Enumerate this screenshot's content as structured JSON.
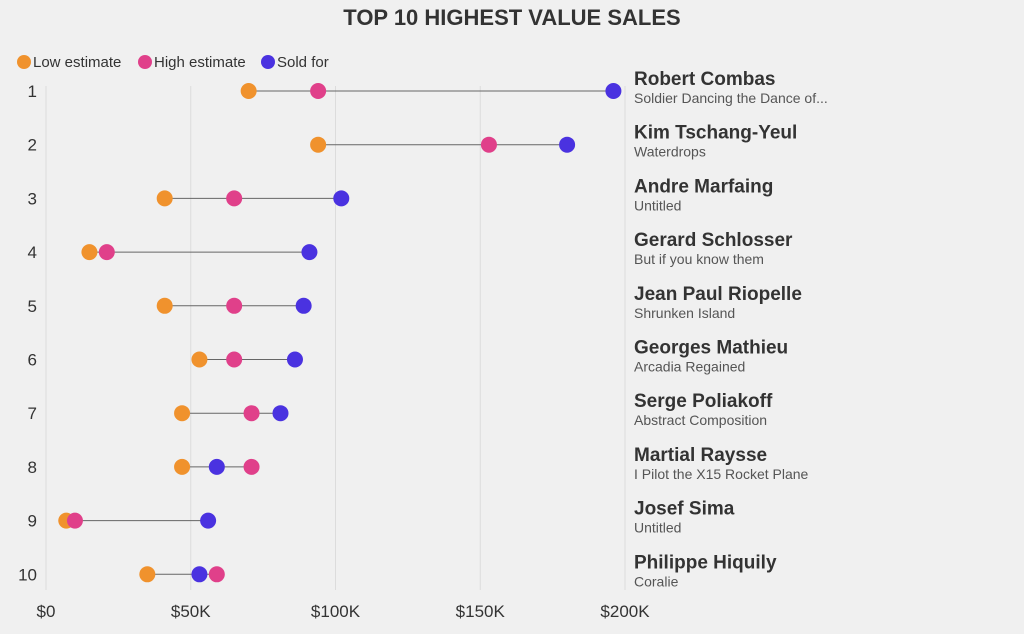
{
  "chart_data": {
    "type": "dumbbell",
    "title": "TOP 10 HIGHEST VALUE SALES",
    "xlabel": "",
    "ylabel": "",
    "xlim": [
      0,
      200000
    ],
    "x_ticks": [
      0,
      50000,
      100000,
      150000,
      200000
    ],
    "x_tick_labels": [
      "$0",
      "$50K",
      "$100K",
      "$150K",
      "$200K"
    ],
    "gridlines": "vertical",
    "legend_position": "top-left",
    "legend": [
      {
        "key": "low",
        "label": "Low estimate",
        "color": "#f0922d"
      },
      {
        "key": "high",
        "label": "High estimate",
        "color": "#e0408a"
      },
      {
        "key": "sold",
        "label": "Sold for",
        "color": "#4a32e0"
      }
    ],
    "rows": [
      {
        "rank": "1",
        "artist": "Robert Combas",
        "work": "Soldier Dancing the Dance of...",
        "low": 70000,
        "high": 94000,
        "sold": 196000
      },
      {
        "rank": "2",
        "artist": "Kim Tschang-Yeul",
        "work": "Waterdrops",
        "low": 94000,
        "high": 153000,
        "sold": 180000
      },
      {
        "rank": "3",
        "artist": "Andre Marfaing",
        "work": "Untitled",
        "low": 41000,
        "high": 65000,
        "sold": 102000
      },
      {
        "rank": "4",
        "artist": "Gerard Schlosser",
        "work": "But if you know them",
        "low": 15000,
        "high": 21000,
        "sold": 91000
      },
      {
        "rank": "5",
        "artist": "Jean Paul Riopelle",
        "work": "Shrunken Island",
        "low": 41000,
        "high": 65000,
        "sold": 89000
      },
      {
        "rank": "6",
        "artist": "Georges Mathieu",
        "work": "Arcadia Regained",
        "low": 53000,
        "high": 65000,
        "sold": 86000
      },
      {
        "rank": "7",
        "artist": "Serge Poliakoff",
        "work": "Abstract Composition",
        "low": 47000,
        "high": 71000,
        "sold": 81000
      },
      {
        "rank": "8",
        "artist": "Martial Raysse",
        "work": "I Pilot the X15 Rocket Plane",
        "low": 47000,
        "high": 71000,
        "sold": 59000
      },
      {
        "rank": "9",
        "artist": "Josef Sima",
        "work": "Untitled",
        "low": 7000,
        "high": 10000,
        "sold": 56000
      },
      {
        "rank": "10",
        "artist": "Philippe Hiquily",
        "work": "Coralie",
        "low": 35000,
        "high": 59000,
        "sold": 53000
      }
    ]
  }
}
